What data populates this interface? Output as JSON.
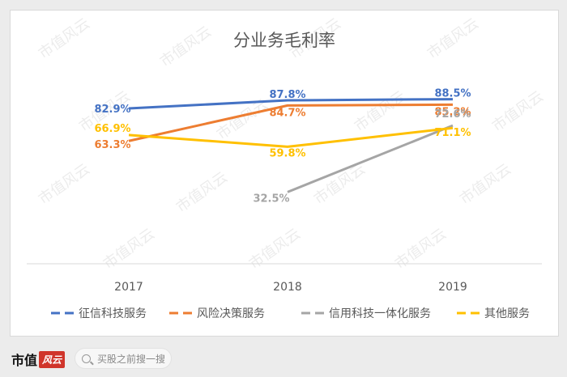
{
  "chart_data": {
    "type": "line",
    "title": "分业务毛利率",
    "categories": [
      "2017",
      "2018",
      "2019"
    ],
    "series": [
      {
        "name": "征信科技服务",
        "color": "#4472c4",
        "values": [
          82.9,
          87.8,
          88.5
        ],
        "labels": [
          "82.9%",
          "87.8%",
          "88.5%"
        ]
      },
      {
        "name": "风险决策服务",
        "color": "#ed7d31",
        "values": [
          63.3,
          84.7,
          85.2
        ],
        "labels": [
          "63.3%",
          "84.7%",
          "85.2%"
        ]
      },
      {
        "name": "信用科技一体化服务",
        "color": "#a5a5a5",
        "values": [
          null,
          32.5,
          72.6
        ],
        "labels": [
          "",
          "32.5%",
          "72.6%"
        ]
      },
      {
        "name": "其他服务",
        "color": "#ffc000",
        "values": [
          66.9,
          59.8,
          71.1
        ],
        "labels": [
          "66.9%",
          "59.8%",
          "71.1%"
        ]
      }
    ],
    "ylim": [
      0,
      100
    ],
    "legend": "bottom",
    "grid": false
  },
  "watermark": "市值风云",
  "footer": {
    "brand": "市值",
    "logo_text": "风云",
    "search_placeholder": "买股之前搜一搜"
  }
}
